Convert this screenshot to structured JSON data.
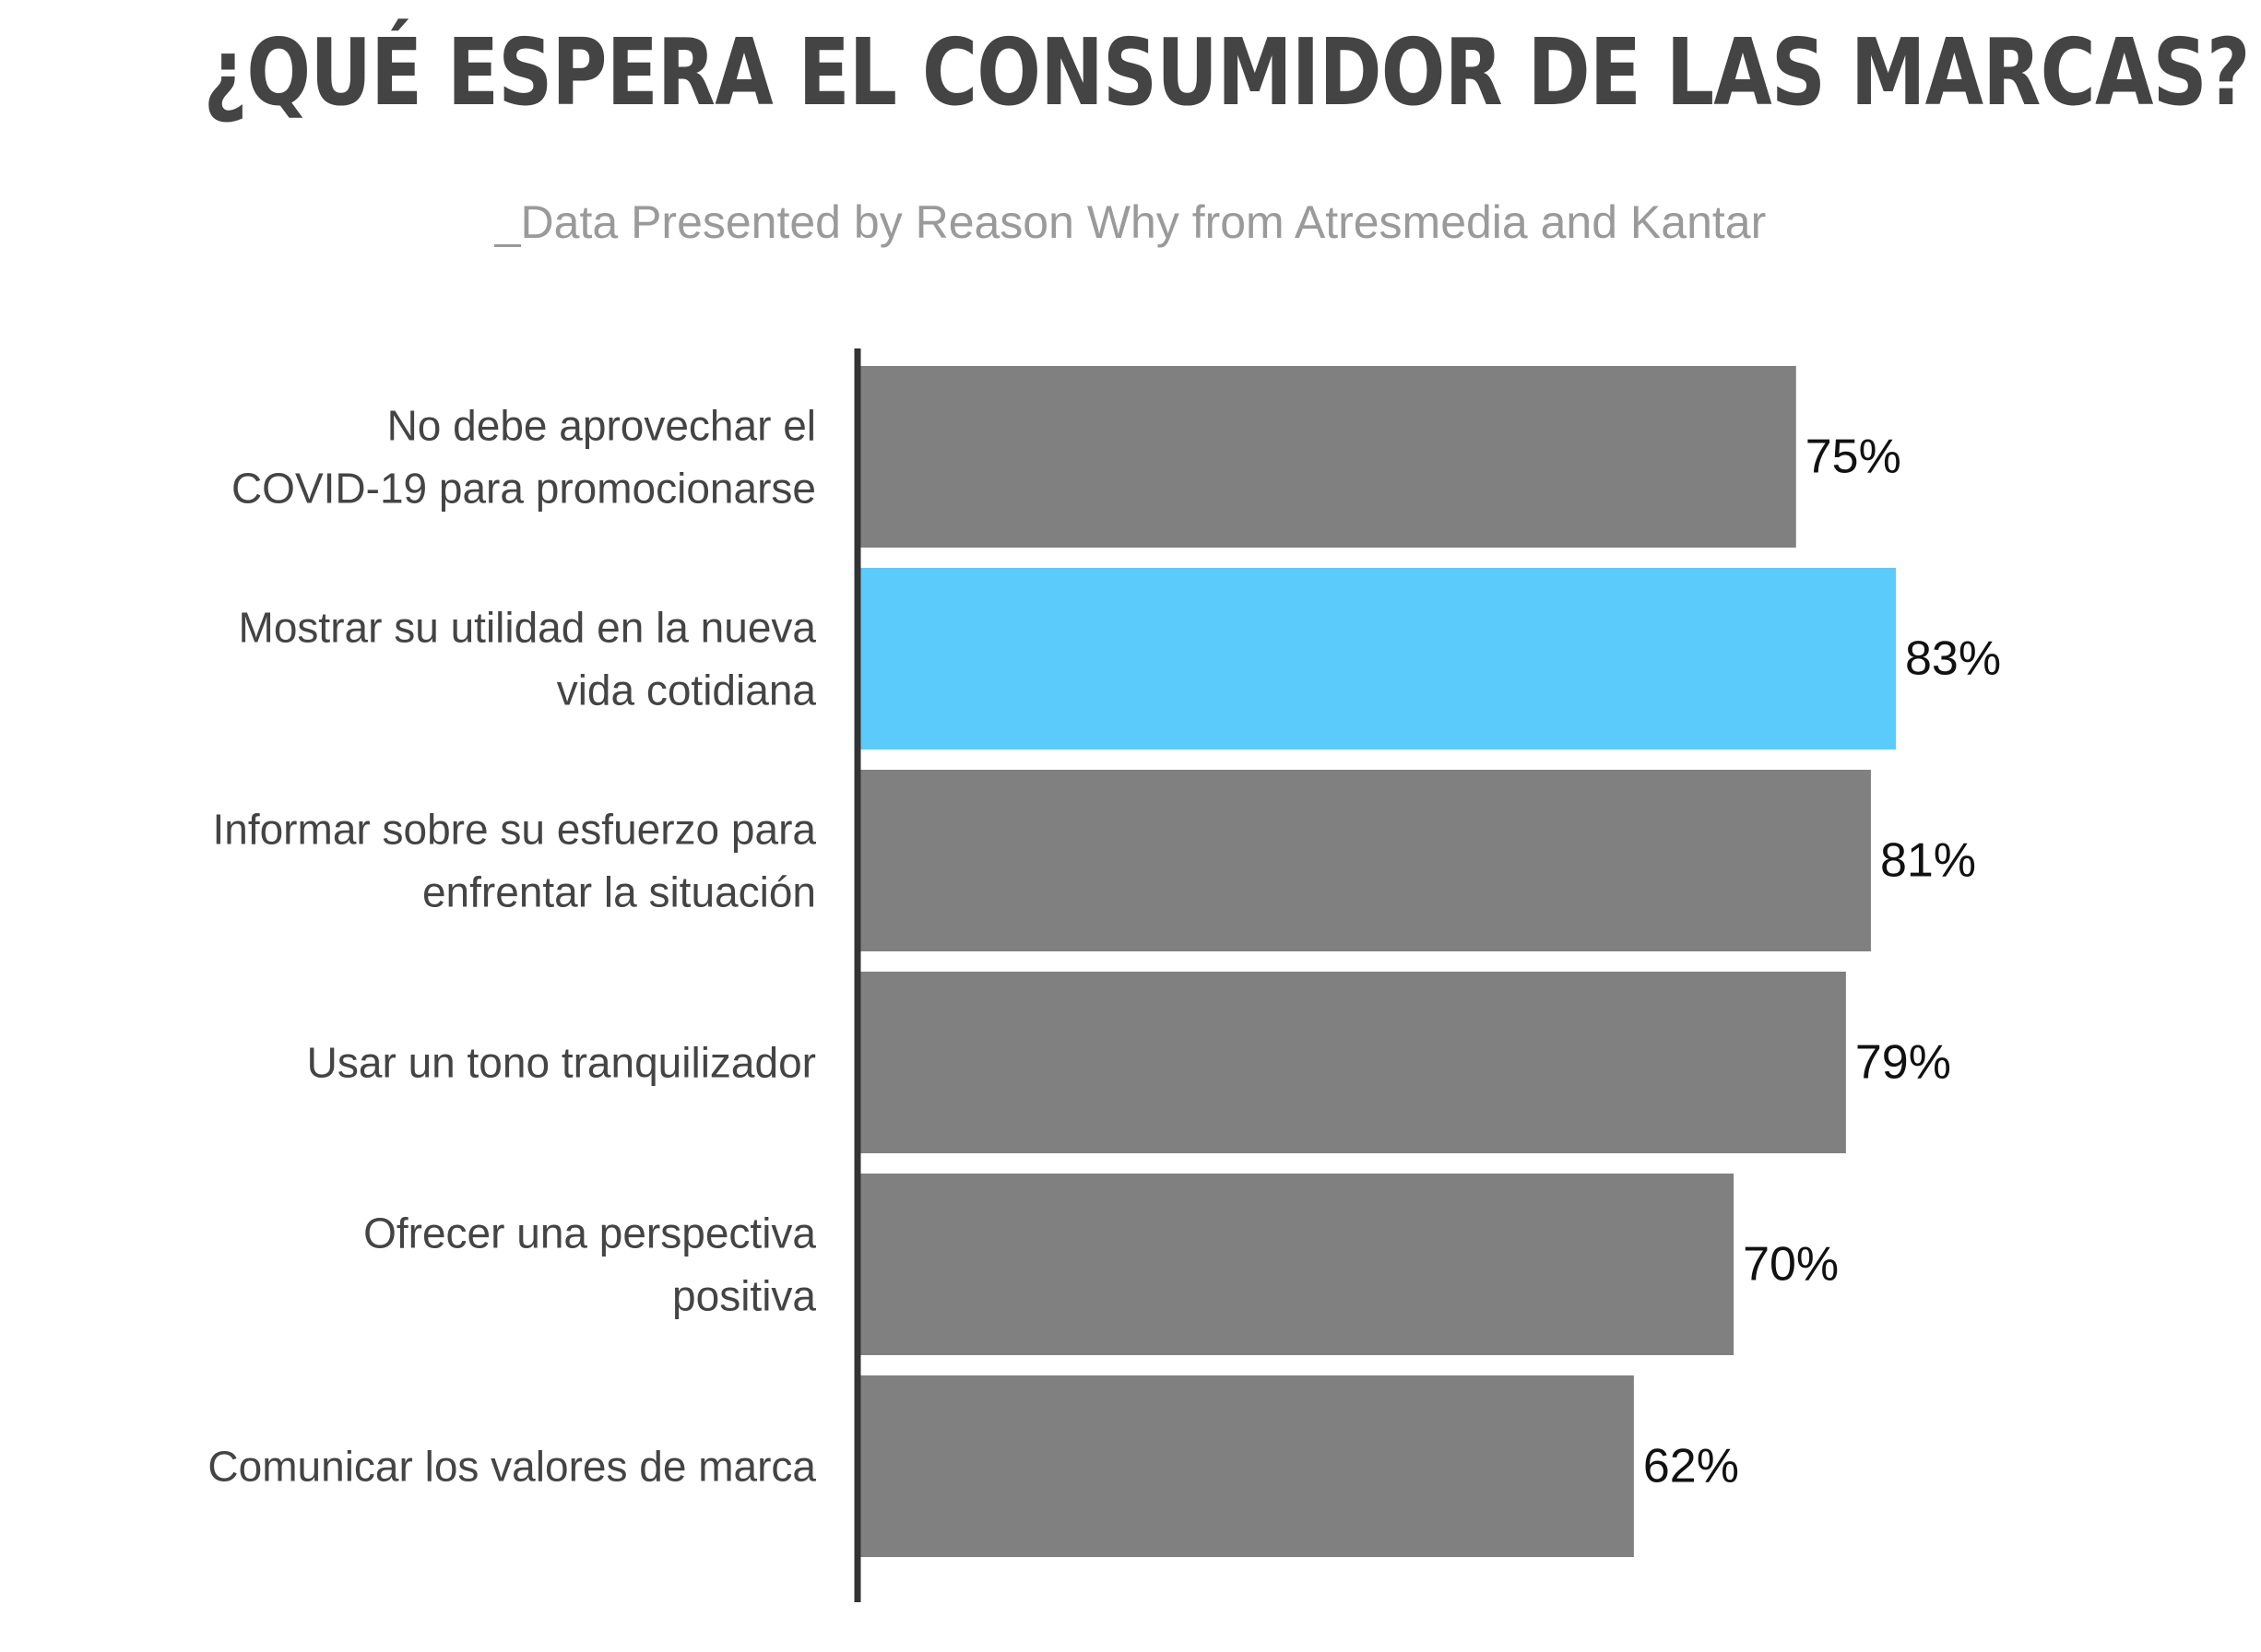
{
  "chart_data": {
    "type": "bar",
    "orientation": "horizontal",
    "title": "¿QUÉ ESPERA EL CONSUMIDOR DE LAS MARCAS?",
    "subtitle": "_Data Presented by Reason Why from Atresmedia and Kantar",
    "categories": [
      [
        "No debe aprovechar el",
        "COVID-19 para promocionarse"
      ],
      [
        "Mostrar su utilidad en la nueva",
        "vida cotidiana"
      ],
      [
        "Informar sobre su esfuerzo para",
        "enfrentar la situación"
      ],
      [
        "Usar un tono tranquilizador"
      ],
      [
        "Ofrecer una perspectiva",
        "positiva"
      ],
      [
        "Comunicar los valores de marca"
      ]
    ],
    "values": [
      75,
      83,
      81,
      79,
      70,
      62
    ],
    "value_labels": [
      "75%",
      "83%",
      "81%",
      "79%",
      "70%",
      "62%"
    ],
    "highlight_index": 1,
    "colors": {
      "default": "#808080",
      "highlight": "#5bcbfb",
      "axis": "#333333"
    },
    "xlim": [
      0,
      100
    ],
    "grid": false,
    "legend": "none"
  }
}
